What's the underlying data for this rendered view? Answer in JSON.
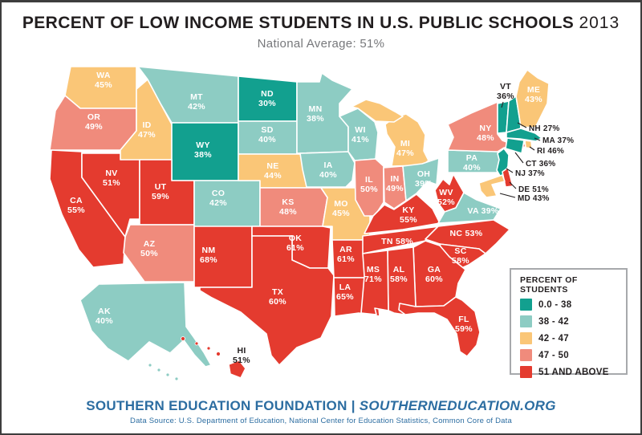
{
  "header": {
    "title_main": "PERCENT OF LOW INCOME STUDENTS IN U.S. PUBLIC SCHOOLS",
    "title_year": "2013",
    "subtitle": "National Average: 51%"
  },
  "legend": {
    "title": "PERCENT OF STUDENTS",
    "items": [
      {
        "label": "0.0 - 38",
        "color": "#12A08F"
      },
      {
        "label": "38 - 42",
        "color": "#8DCCC3"
      },
      {
        "label": "42 - 47",
        "color": "#FAC677"
      },
      {
        "label": "47 - 50",
        "color": "#F08B7C"
      },
      {
        "label": "51 AND ABOVE",
        "color": "#E43B2F"
      }
    ]
  },
  "footer": {
    "org": "SOUTHERN EDUCATION FOUNDATION",
    "divider": "|",
    "site": "SOUTHERNEDUCATION.ORG",
    "source": "Data Source: U.S. Department of Education, National Center for Education Statistics, Common Core of Data"
  },
  "chart_data": {
    "type": "choropleth-map",
    "title": "Percent of Low Income Students in U.S. Public Schools, 2013",
    "national_average_pct": 51,
    "value_unit": "percent of students",
    "buckets": [
      "0.0 - 38",
      "38 - 42",
      "42 - 47",
      "47 - 50",
      "51 AND ABOVE"
    ],
    "states": [
      {
        "code": "WA",
        "value": 45,
        "bucket": "42 - 47"
      },
      {
        "code": "OR",
        "value": 49,
        "bucket": "47 - 50"
      },
      {
        "code": "CA",
        "value": 55,
        "bucket": "51 AND ABOVE"
      },
      {
        "code": "NV",
        "value": 51,
        "bucket": "51 AND ABOVE"
      },
      {
        "code": "ID",
        "value": 47,
        "bucket": "42 - 47"
      },
      {
        "code": "MT",
        "value": 42,
        "bucket": "38 - 42"
      },
      {
        "code": "WY",
        "value": 38,
        "bucket": "0.0 - 38"
      },
      {
        "code": "UT",
        "value": 59,
        "bucket": "51 AND ABOVE"
      },
      {
        "code": "AZ",
        "value": 50,
        "bucket": "47 - 50"
      },
      {
        "code": "NM",
        "value": 68,
        "bucket": "51 AND ABOVE"
      },
      {
        "code": "CO",
        "value": 42,
        "bucket": "38 - 42"
      },
      {
        "code": "ND",
        "value": 30,
        "bucket": "0.0 - 38"
      },
      {
        "code": "SD",
        "value": 40,
        "bucket": "38 - 42"
      },
      {
        "code": "NE",
        "value": 44,
        "bucket": "42 - 47"
      },
      {
        "code": "KS",
        "value": 48,
        "bucket": "47 - 50"
      },
      {
        "code": "OK",
        "value": 61,
        "bucket": "51 AND ABOVE"
      },
      {
        "code": "TX",
        "value": 60,
        "bucket": "51 AND ABOVE"
      },
      {
        "code": "MN",
        "value": 38,
        "bucket": "38 - 42"
      },
      {
        "code": "IA",
        "value": 40,
        "bucket": "38 - 42"
      },
      {
        "code": "MO",
        "value": 45,
        "bucket": "42 - 47"
      },
      {
        "code": "AR",
        "value": 61,
        "bucket": "51 AND ABOVE"
      },
      {
        "code": "LA",
        "value": 65,
        "bucket": "51 AND ABOVE"
      },
      {
        "code": "WI",
        "value": 41,
        "bucket": "38 - 42"
      },
      {
        "code": "IL",
        "value": 50,
        "bucket": "47 - 50"
      },
      {
        "code": "IN",
        "value": 49,
        "bucket": "47 - 50"
      },
      {
        "code": "MI",
        "value": 47,
        "bucket": "42 - 47"
      },
      {
        "code": "OH",
        "value": 39,
        "bucket": "38 - 42"
      },
      {
        "code": "KY",
        "value": 55,
        "bucket": "51 AND ABOVE"
      },
      {
        "code": "WV",
        "value": 52,
        "bucket": "51 AND ABOVE"
      },
      {
        "code": "VA",
        "value": 39,
        "bucket": "38 - 42"
      },
      {
        "code": "TN",
        "value": 58,
        "bucket": "51 AND ABOVE"
      },
      {
        "code": "NC",
        "value": 53,
        "bucket": "51 AND ABOVE"
      },
      {
        "code": "SC",
        "value": 58,
        "bucket": "51 AND ABOVE"
      },
      {
        "code": "GA",
        "value": 60,
        "bucket": "51 AND ABOVE"
      },
      {
        "code": "AL",
        "value": 58,
        "bucket": "51 AND ABOVE"
      },
      {
        "code": "MS",
        "value": 71,
        "bucket": "51 AND ABOVE"
      },
      {
        "code": "FL",
        "value": 59,
        "bucket": "51 AND ABOVE"
      },
      {
        "code": "PA",
        "value": 40,
        "bucket": "38 - 42"
      },
      {
        "code": "NY",
        "value": 48,
        "bucket": "47 - 50"
      },
      {
        "code": "VT",
        "value": 36,
        "bucket": "0.0 - 38"
      },
      {
        "code": "NH",
        "value": 27,
        "bucket": "0.0 - 38"
      },
      {
        "code": "ME",
        "value": 43,
        "bucket": "42 - 47"
      },
      {
        "code": "MA",
        "value": 37,
        "bucket": "0.0 - 38"
      },
      {
        "code": "RI",
        "value": 46,
        "bucket": "42 - 47"
      },
      {
        "code": "CT",
        "value": 36,
        "bucket": "0.0 - 38"
      },
      {
        "code": "NJ",
        "value": 37,
        "bucket": "0.0 - 38"
      },
      {
        "code": "DE",
        "value": 51,
        "bucket": "51 AND ABOVE"
      },
      {
        "code": "MD",
        "value": 43,
        "bucket": "42 - 47"
      },
      {
        "code": "AK",
        "value": 40,
        "bucket": "38 - 42"
      },
      {
        "code": "HI",
        "value": 51,
        "bucket": "51 AND ABOVE"
      }
    ]
  }
}
